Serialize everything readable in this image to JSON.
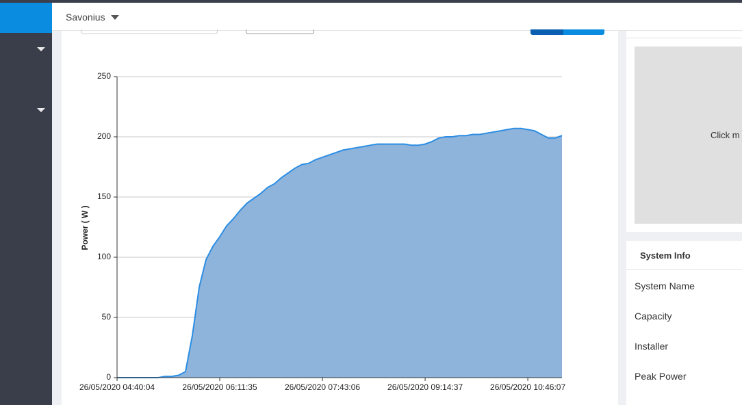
{
  "header": {
    "title": "Savonius"
  },
  "chart_data": {
    "type": "area",
    "ylabel": "Power ( W )",
    "color": "#2b8de3",
    "fill": "#8fb4dc",
    "grid": true,
    "x": [
      "2020-05-26T04:40:04",
      "2020-05-26T04:46:10",
      "2020-05-26T04:52:16",
      "2020-05-26T04:58:22",
      "2020-05-26T05:04:28",
      "2020-05-26T05:10:34",
      "2020-05-26T05:16:40",
      "2020-05-26T05:22:46",
      "2020-05-26T05:28:52",
      "2020-05-26T05:34:58",
      "2020-05-26T05:41:04",
      "2020-05-26T05:47:10",
      "2020-05-26T05:53:16",
      "2020-05-26T05:59:22",
      "2020-05-26T06:05:28",
      "2020-05-26T06:11:34",
      "2020-05-26T06:17:40",
      "2020-05-26T06:23:46",
      "2020-05-26T06:29:52",
      "2020-05-26T06:35:58",
      "2020-05-26T06:42:04",
      "2020-05-26T06:48:10",
      "2020-05-26T06:54:16",
      "2020-05-26T07:00:22",
      "2020-05-26T07:06:28",
      "2020-05-26T07:12:34",
      "2020-05-26T07:18:40",
      "2020-05-26T07:24:46",
      "2020-05-26T07:30:52",
      "2020-05-26T07:36:58",
      "2020-05-26T07:43:04",
      "2020-05-26T07:49:10",
      "2020-05-26T07:55:16",
      "2020-05-26T08:01:22",
      "2020-05-26T08:07:28",
      "2020-05-26T08:13:34",
      "2020-05-26T08:19:40",
      "2020-05-26T08:25:46",
      "2020-05-26T08:31:52",
      "2020-05-26T08:37:58",
      "2020-05-26T08:44:04",
      "2020-05-26T08:50:10",
      "2020-05-26T08:56:16",
      "2020-05-26T09:02:22",
      "2020-05-26T09:08:28",
      "2020-05-26T09:14:34",
      "2020-05-26T09:20:40",
      "2020-05-26T09:26:46",
      "2020-05-26T09:32:52",
      "2020-05-26T09:38:58",
      "2020-05-26T09:45:04",
      "2020-05-26T09:51:10",
      "2020-05-26T09:57:16",
      "2020-05-26T10:03:22",
      "2020-05-26T10:09:28",
      "2020-05-26T10:15:34",
      "2020-05-26T10:21:40",
      "2020-05-26T10:27:46",
      "2020-05-26T10:33:52",
      "2020-05-26T10:39:58",
      "2020-05-26T10:46:04",
      "2020-05-26T10:52:10",
      "2020-05-26T10:58:16",
      "2020-05-26T11:04:22",
      "2020-05-26T11:10:28",
      "2020-05-26T11:16:34"
    ],
    "values": [
      0,
      0,
      0,
      0,
      0,
      0,
      0,
      1,
      1,
      2,
      5,
      35,
      75,
      98,
      109,
      117,
      126,
      132,
      139,
      145,
      149,
      153,
      158,
      161,
      166,
      170,
      174,
      177,
      178,
      181,
      183,
      185,
      187,
      189,
      190,
      191,
      192,
      193,
      194,
      194,
      194,
      194,
      194,
      193,
      193,
      194,
      196,
      199,
      200,
      200,
      201,
      201,
      202,
      202,
      203,
      204,
      205,
      206,
      207,
      207,
      206,
      205,
      202,
      199,
      199,
      201
    ],
    "xlim": [
      "2020-05-26T04:40:04",
      "2020-05-26T11:16:34"
    ],
    "xticks": [
      {
        "value": "2020-05-26T04:40:04",
        "label": "26/05/2020 04:40:04"
      },
      {
        "value": "2020-05-26T06:11:35",
        "label": "26/05/2020 06:11:35"
      },
      {
        "value": "2020-05-26T07:43:06",
        "label": "26/05/2020 07:43:06"
      },
      {
        "value": "2020-05-26T09:14:37",
        "label": "26/05/2020 09:14:37"
      },
      {
        "value": "2020-05-26T10:46:07",
        "label": "26/05/2020 10:46:07"
      }
    ],
    "ylim": [
      0,
      250
    ],
    "yticks": [
      0,
      50,
      100,
      150,
      200,
      250
    ]
  },
  "preview": {
    "text": "Click m"
  },
  "system_info": {
    "title": "System Info",
    "rows": [
      "System Name",
      "Capacity",
      "Installer",
      "Peak Power"
    ]
  }
}
